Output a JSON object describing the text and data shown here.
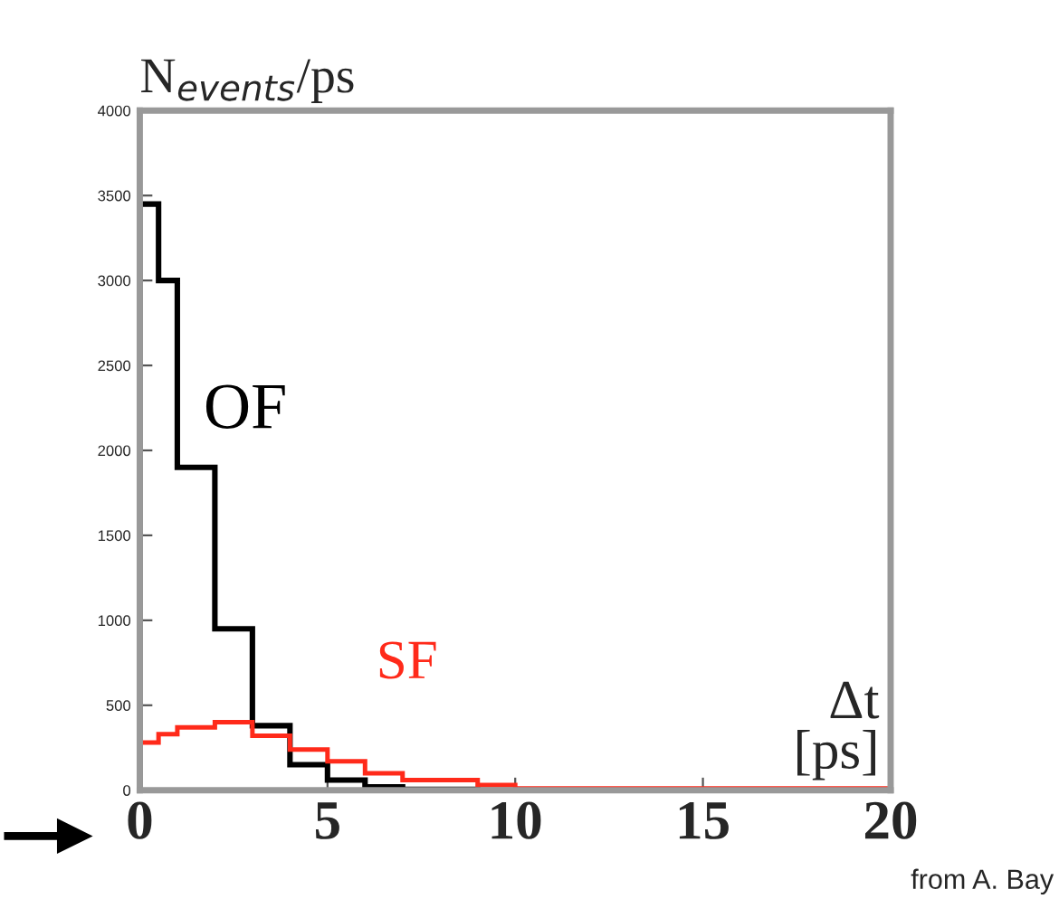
{
  "chart_data": {
    "type": "histogram",
    "ylabel": "N$_{events}$/ps",
    "xlabel": "Δt\n[ps]",
    "bins": [
      0,
      0.5,
      1,
      2,
      3,
      4,
      5,
      6,
      7,
      9,
      10,
      20
    ],
    "series": [
      {
        "name": "OF",
        "color": "#000000",
        "values": [
          3450,
          3000,
          1900,
          950,
          380,
          150,
          60,
          20,
          5,
          0,
          0
        ]
      },
      {
        "name": "SF",
        "color": "#ff2a1a",
        "values": [
          280,
          330,
          370,
          400,
          320,
          240,
          170,
          100,
          60,
          30,
          10
        ]
      }
    ],
    "xlim": [
      0,
      20
    ],
    "ylim": [
      0,
      4000
    ],
    "xticks": [
      0,
      5,
      10,
      15,
      20
    ],
    "yticks": [
      0,
      500,
      1000,
      1500,
      2000,
      2500,
      3000,
      3500,
      4000
    ],
    "grid": false,
    "legend": false,
    "annotations": [
      "from A. Bay"
    ]
  }
}
